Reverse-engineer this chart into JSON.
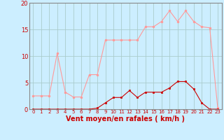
{
  "title": "",
  "xlabel": "Vent moyen/en rafales ( km/h )",
  "background_color": "#cceeff",
  "grid_color": "#aacccc",
  "line1_color": "#ff9999",
  "line2_color": "#cc0000",
  "x": [
    0,
    1,
    2,
    3,
    4,
    5,
    6,
    7,
    8,
    9,
    10,
    11,
    12,
    13,
    14,
    15,
    16,
    17,
    18,
    19,
    20,
    21,
    22,
    23
  ],
  "y_rafales": [
    2.5,
    2.5,
    2.5,
    10.5,
    3.2,
    2.3,
    2.3,
    6.5,
    6.5,
    13.0,
    13.0,
    13.0,
    13.0,
    13.0,
    15.5,
    15.5,
    16.5,
    18.5,
    16.5,
    18.5,
    16.5,
    15.5,
    15.3,
    0.2
  ],
  "y_moyen": [
    0,
    0,
    0,
    0,
    0,
    0,
    0,
    0,
    0.2,
    1.2,
    2.2,
    2.2,
    3.5,
    2.2,
    3.2,
    3.2,
    3.2,
    4.0,
    5.2,
    5.2,
    3.8,
    1.2,
    0,
    0
  ],
  "ylim": [
    0,
    20
  ],
  "xlim": [
    -0.5,
    23.5
  ],
  "yticks": [
    0,
    5,
    10,
    15,
    20
  ],
  "xticks": [
    0,
    1,
    2,
    3,
    4,
    5,
    6,
    7,
    8,
    9,
    10,
    11,
    12,
    13,
    14,
    15,
    16,
    17,
    18,
    19,
    20,
    21,
    22,
    23
  ],
  "tick_color": "#cc0000",
  "spine_color": "#888888",
  "xlabel_color": "#cc0000",
  "xlabel_fontsize": 7,
  "tick_fontsize": 5,
  "ytick_fontsize": 6
}
